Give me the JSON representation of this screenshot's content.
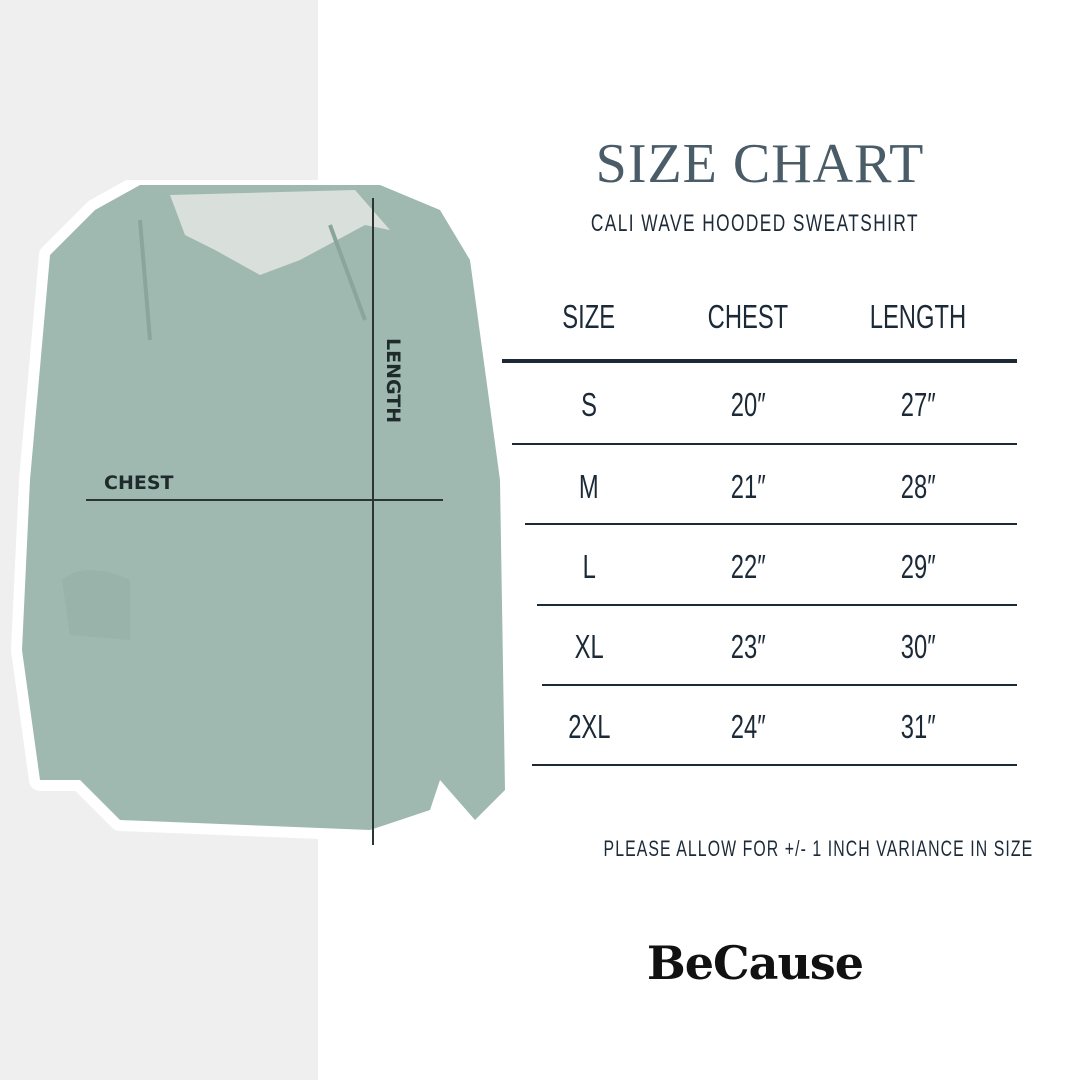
{
  "title": "SIZE CHART",
  "subtitle": "CALI WAVE HOODED SWEATSHIRT",
  "diagram": {
    "chest_label": "CHEST",
    "length_label": "LENGTH",
    "garment_color": "#9fb9b0"
  },
  "table": {
    "headers": [
      "SIZE",
      "CHEST",
      "LENGTH"
    ],
    "rows": [
      [
        "S",
        "20″",
        "27″"
      ],
      [
        "M",
        "21″",
        "28″"
      ],
      [
        "L",
        "22″",
        "29″"
      ],
      [
        "XL",
        "23″",
        "30″"
      ],
      [
        "2XL",
        "24″",
        "31″"
      ]
    ]
  },
  "note": "PLEASE ALLOW FOR +/- 1 INCH VARIANCE IN SIZE",
  "brand": "BeCause",
  "colors": {
    "title": "#4a5c68",
    "text": "#1c2a38",
    "panel": "#efefef"
  }
}
